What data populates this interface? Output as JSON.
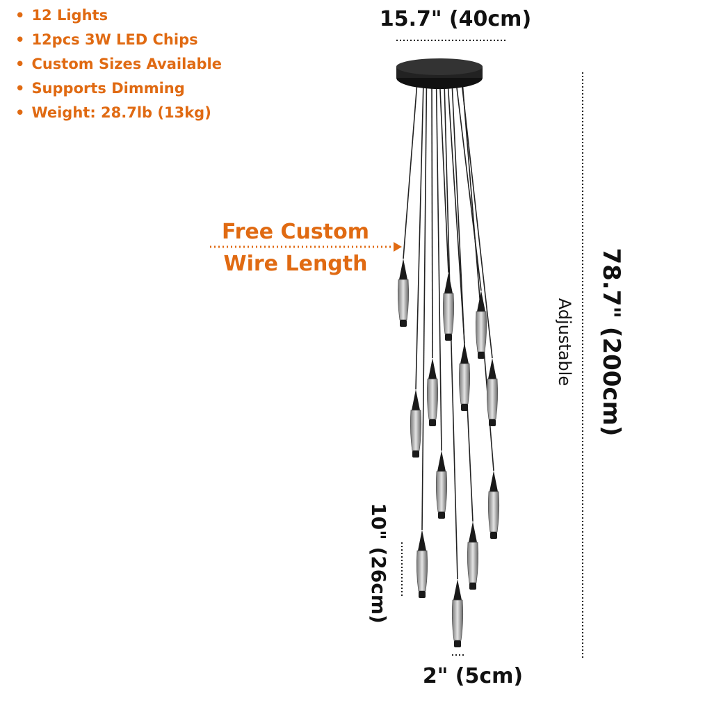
{
  "features": [
    "12 Lights",
    "12pcs 3W LED Chips",
    "Custom Sizes Available",
    "Supports Dimming",
    "Weight: 28.7lb (13kg)"
  ],
  "dimensions": {
    "canopy_width": "15.7\" (40cm)",
    "height": "78.7\" (200cm)",
    "height_note": "Adjustable",
    "shade_height": "10\" (26cm)",
    "shade_width": "2\" (5cm)"
  },
  "callout": {
    "line1": "Free Custom",
    "line2": "Wire Length"
  }
}
